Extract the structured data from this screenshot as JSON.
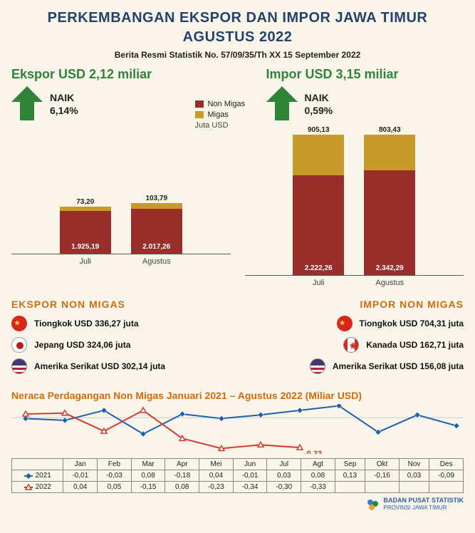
{
  "header": {
    "title_line1": "PERKEMBANGAN EKSPOR DAN IMPOR  JAWA TIMUR",
    "title_line2": "AGUSTUS 2022",
    "subtitle": "Berita Resmi Statistik No. 57/09/35/Th XX 15 September 2022"
  },
  "colors": {
    "background": "#f9f5eb",
    "title": "#24426b",
    "green": "#2f8438",
    "arrow": "#2f8438",
    "non_migas": "#9a2e2b",
    "migas": "#c79a2a",
    "orange": "#d46b0a",
    "line2021": "#1f5fb0",
    "line2022": "#d83a2b",
    "grid": "#bdbdbd",
    "footer_bg": "#2d5fa4"
  },
  "ekspor": {
    "heading": "Ekspor USD 2,12 miliar",
    "naik_label": "NAIK",
    "pct": "6,14%",
    "bars": [
      {
        "label": "Juli",
        "non": "1.925,19",
        "non_h": 60,
        "mig": "73,20",
        "mig_h": 6
      },
      {
        "label": "Agustus",
        "non": "2.017,26",
        "non_h": 63,
        "mig": "103,79",
        "mig_h": 8
      }
    ]
  },
  "impor": {
    "heading": "Impor USD 3,15 miliar",
    "naik_label": "NAIK",
    "pct": "0,59%",
    "bars": [
      {
        "label": "Juli",
        "non": "2.222,26",
        "non_h": 140,
        "mig": "905,13",
        "mig_h": 57
      },
      {
        "label": "Agustus",
        "non": "2.342,29",
        "non_h": 147,
        "mig": "803,43",
        "mig_h": 50
      }
    ]
  },
  "legend": {
    "non": "Non Migas",
    "mig": "Migas",
    "unit": "Juta USD"
  },
  "ekspor_non_migas": {
    "heading": "EKSPOR NON MIGAS",
    "items": [
      {
        "flag": "cn",
        "text": "Tiongkok USD 336,27 juta"
      },
      {
        "flag": "jp",
        "text": "Jepang USD 324,06 juta"
      },
      {
        "flag": "us",
        "text": "Amerika Serikat USD 302,14 juta"
      }
    ]
  },
  "impor_non_migas": {
    "heading": "IMPOR NON MIGAS",
    "items": [
      {
        "flag": "cn",
        "text": "Tiongkok USD 704,31 juta"
      },
      {
        "flag": "ca",
        "text": "Kanada USD 162,71 juta"
      },
      {
        "flag": "us",
        "text": "Amerika Serikat USD 156,08 juta"
      }
    ]
  },
  "neraca": {
    "heading": "Neraca Perdagangan Non Migas Januari  2021 – Agustus 2022 (Miliar USD)",
    "months": [
      "Jan",
      "Feb",
      "Mar",
      "Apr",
      "Mei",
      "Jun",
      "Jul",
      "Agt",
      "Sep",
      "Okt",
      "Nov",
      "Des"
    ],
    "series": {
      "2021": [
        "-0,01",
        "-0,03",
        "0,08",
        "-0,18",
        "0,04",
        "-0,01",
        "0,03",
        "0,08",
        "0,13",
        "-0,16",
        "0,03",
        "-0,09"
      ],
      "2022": [
        "0,04",
        "0,05",
        "-0,15",
        "0,08",
        "-0,23",
        "-0,34",
        "-0,30",
        "-0,33"
      ]
    },
    "y_max": 0.15,
    "y_min": -0.4,
    "annotations": [
      {
        "text": "0,08",
        "x": 7,
        "series": "2021",
        "dy": -12,
        "color": "#1f5fb0"
      },
      {
        "text": "-0,33",
        "x": 7,
        "series": "2022",
        "dy": 12,
        "color": "#d83a2b"
      }
    ]
  },
  "footer": {
    "line1": "BADAN PUSAT STATISTIK",
    "line2": "PROVINSI JAWA TIMUR"
  },
  "flags": {
    "cn": {
      "bg": "#d62718",
      "dot": "#ffd24a"
    },
    "jp": {
      "bg": "#ffffff",
      "dot": "#b71c1c",
      "border": "#999"
    },
    "us": {
      "bg": "linear-gradient(#3c3b6e 0 40%, transparent 40%), repeating-linear-gradient(#b22234 0 3px,#fff 3px 6px)",
      "border": "#888"
    },
    "ca": {
      "bg": "linear-gradient(90deg,#d52b1e 0 25%,#fff 25% 75%,#d52b1e 75%)",
      "dot": "#d52b1e",
      "border": "#888"
    }
  }
}
